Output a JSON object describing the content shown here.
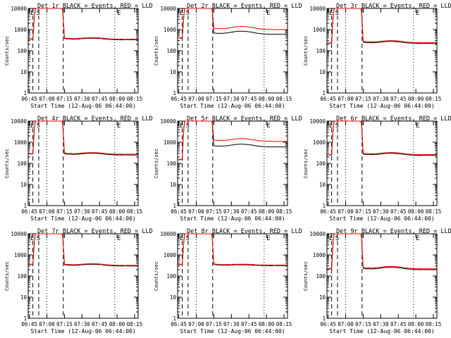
{
  "chart_data": {
    "type": "line",
    "layout": "3x3 grid of panels",
    "xlabel": "Start Time (12-Aug-06 06:44:00)",
    "ylabel": "Counts/sec",
    "x_ticks": [
      "06:45",
      "07:00",
      "07:15",
      "07:30",
      "07:45",
      "08:00",
      "08:15"
    ],
    "x_range_minutes": [
      0,
      94
    ],
    "y_scale": "log",
    "y_range": [
      1,
      10000
    ],
    "y_ticks": [
      "1",
      "10",
      "100",
      "1000",
      "10000"
    ],
    "series_colors": {
      "events": "#000000",
      "lld": "#ff0000"
    },
    "panels": [
      {
        "title": "Det 1r BLACK = Events, RED = LLD",
        "markers": [
          "E",
          "S",
          "E"
        ],
        "base_events": 330,
        "base_lld": 350,
        "bump": 1.18,
        "pre_level": 350
      },
      {
        "title": "Det 2r BLACK = Events, RED = LLD",
        "markers": [
          "E",
          "S",
          "E"
        ],
        "base_events": 600,
        "base_lld": 1000,
        "bump": 1.4,
        "pre_level": 400
      },
      {
        "title": "Det 3r BLACK = Events, RED = LLD",
        "markers": [
          "E",
          "S",
          "E"
        ],
        "base_events": 220,
        "base_lld": 240,
        "bump": 1.25,
        "pre_level": 230
      },
      {
        "title": "Det 4r BLACK = Events, RED = LLD",
        "markers": [
          "E",
          "S",
          "E"
        ],
        "base_events": 250,
        "base_lld": 270,
        "bump": 1.2,
        "pre_level": 280
      },
      {
        "title": "Det 5r BLACK = Events, RED = LLD",
        "markers": [
          "E",
          "S",
          "E"
        ],
        "base_events": 600,
        "base_lld": 1100,
        "bump": 1.35,
        "pre_level": 150
      },
      {
        "title": "Det 6r BLACK = Events, RED = LLD",
        "markers": [
          "E",
          "S",
          "E"
        ],
        "base_events": 240,
        "base_lld": 260,
        "bump": 1.25,
        "pre_level": 250
      },
      {
        "title": "Det 7r BLACK = Events, RED = LLD",
        "markers": [
          "E",
          "S",
          "E"
        ],
        "base_events": 300,
        "base_lld": 320,
        "bump": 1.2,
        "pre_level": 350
      },
      {
        "title": "Det 8r BLACK = Events, RED = LLD",
        "markers": [
          "E",
          "S",
          "E"
        ],
        "base_events": 310,
        "base_lld": 330,
        "bump": 1.1,
        "pre_level": 350
      },
      {
        "title": "Det 9r BLACK = Events, RED = LLD",
        "markers": [
          "E",
          "S",
          "E"
        ],
        "base_events": 200,
        "base_lld": 220,
        "bump": 1.3,
        "pre_level": 220
      }
    ],
    "vertical_lines": [
      {
        "minute": 4,
        "style": "dashed"
      },
      {
        "minute": 9,
        "style": "dashed"
      },
      {
        "minute": 16,
        "style": "dotted"
      },
      {
        "minute": 30,
        "style": "dashed"
      },
      {
        "minute": 74,
        "style": "dotted"
      }
    ],
    "grid": false,
    "legend": "none (described in panel title)"
  }
}
